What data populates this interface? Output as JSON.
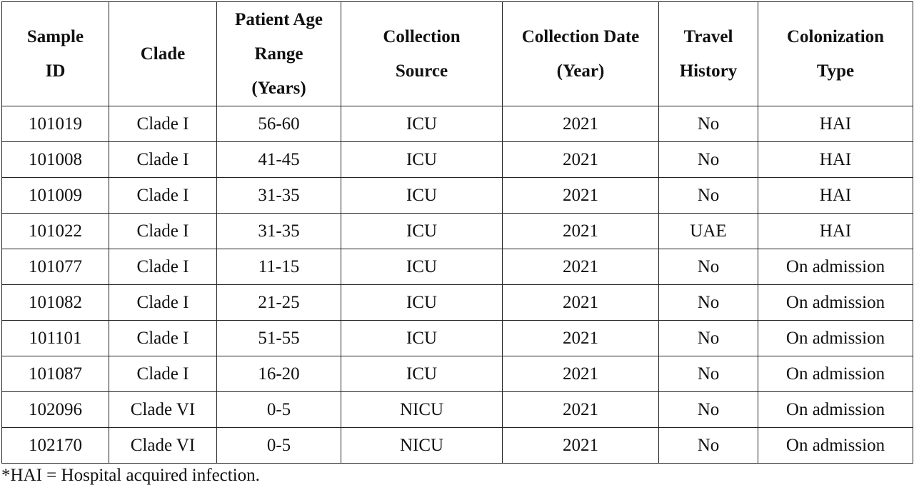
{
  "table": {
    "header": [
      "Sample ID",
      "Clade",
      "Patient Age Range (Years)",
      "Collection Source",
      "Collection Date (Year)",
      "Travel History",
      "Colonization Type"
    ],
    "rows": [
      [
        "101019",
        "Clade I",
        "56-60",
        "ICU",
        "2021",
        "No",
        "HAI"
      ],
      [
        "101008",
        "Clade I",
        "41-45",
        "ICU",
        "2021",
        "No",
        "HAI"
      ],
      [
        "101009",
        "Clade I",
        "31-35",
        "ICU",
        "2021",
        "No",
        "HAI"
      ],
      [
        "101022",
        "Clade I",
        "31-35",
        "ICU",
        "2021",
        "UAE",
        "HAI"
      ],
      [
        "101077",
        "Clade I",
        "11-15",
        "ICU",
        "2021",
        "No",
        "On admission"
      ],
      [
        "101082",
        "Clade I",
        "21-25",
        "ICU",
        "2021",
        "No",
        "On admission"
      ],
      [
        "101101",
        "Clade I",
        "51-55",
        "ICU",
        "2021",
        "No",
        "On admission"
      ],
      [
        "101087",
        "Clade I",
        "16-20",
        "ICU",
        "2021",
        "No",
        "On admission"
      ],
      [
        "102096",
        "Clade VI",
        "0-5",
        "NICU",
        "2021",
        "No",
        "On admission"
      ],
      [
        "102170",
        "Clade VI",
        "0-5",
        "NICU",
        "2021",
        "No",
        "On admission"
      ]
    ]
  },
  "footnote": "*HAI = Hospital acquired infection."
}
